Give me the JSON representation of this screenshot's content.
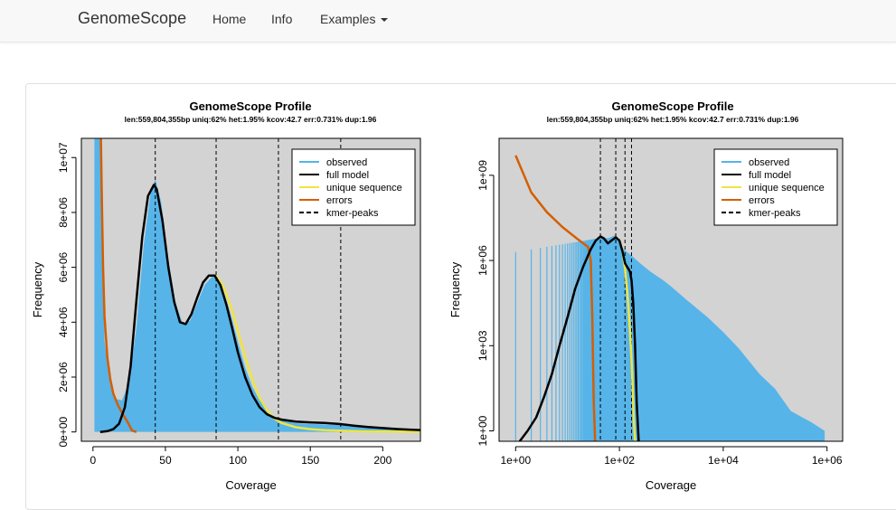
{
  "navbar": {
    "brand": "GenomeScope",
    "items": [
      "Home",
      "Info",
      "Examples"
    ]
  },
  "chart_data": [
    {
      "type": "histogram",
      "title": "GenomeScope Profile",
      "subtitle": "len:559,804,355bp uniq:62% het:1.95% kcov:42.7 err:0.731% dup:1.96",
      "xlabel": "Coverage",
      "ylabel": "Frequency",
      "xlim": [
        -8,
        226
      ],
      "ylim": [
        -340000,
        10700000
      ],
      "x_ticks": [
        0,
        50,
        100,
        150,
        200
      ],
      "x_tick_labels": [
        "0",
        "50",
        "100",
        "150",
        "200"
      ],
      "y_ticks": [
        0,
        2000000,
        4000000,
        6000000,
        8000000,
        10000000
      ],
      "y_tick_labels": [
        "0e+00",
        "2e+06",
        "4e+06",
        "6e+06",
        "8e+06",
        "1e+07"
      ],
      "kmer_peaks": [
        43,
        85,
        128,
        171
      ],
      "legend": [
        "observed",
        "full model",
        "unique sequence",
        "errors",
        "kmer-peaks"
      ],
      "legend_position": "top-right",
      "colors": {
        "observed": "#56b4e9",
        "full_model": "#000000",
        "unique": "#f0e442",
        "errors": "#d55e00",
        "background": "#d3d3d3"
      },
      "series": [
        {
          "name": "observed",
          "x": [
            1,
            3,
            5,
            8,
            12,
            16,
            20,
            25,
            30,
            35,
            40,
            43,
            47,
            52,
            57,
            62,
            67,
            72,
            77,
            82,
            85,
            90,
            95,
            100,
            105,
            110,
            115,
            120,
            128,
            140,
            150,
            160,
            171,
            180,
            190,
            200,
            210,
            220,
            226
          ],
          "y": [
            10700000,
            10700000,
            10700000,
            3300000,
            1700000,
            1200000,
            1150000,
            1800000,
            3800000,
            6800000,
            8800000,
            9200000,
            8400000,
            6300000,
            4700000,
            3950000,
            4050000,
            4700000,
            5350000,
            5650000,
            5650000,
            5150000,
            4300000,
            3300000,
            2350000,
            1650000,
            1150000,
            800000,
            450000,
            320000,
            290000,
            270000,
            250000,
            220000,
            190000,
            160000,
            130000,
            110000,
            100000
          ]
        },
        {
          "name": "full model",
          "x": [
            5,
            10,
            14,
            18,
            22,
            26,
            30,
            34,
            38,
            42,
            44,
            48,
            52,
            56,
            60,
            64,
            68,
            72,
            76,
            80,
            84,
            88,
            92,
            96,
            100,
            105,
            110,
            115,
            120,
            125,
            130,
            140,
            150,
            160,
            170,
            180,
            190,
            200,
            210,
            220,
            226
          ],
          "y": [
            0,
            30000,
            100000,
            300000,
            900000,
            2400000,
            4800000,
            7100000,
            8600000,
            9000000,
            8850000,
            7700000,
            6000000,
            4750000,
            4000000,
            3930000,
            4300000,
            4900000,
            5450000,
            5700000,
            5700000,
            5350000,
            4650000,
            3800000,
            2900000,
            2000000,
            1350000,
            900000,
            650000,
            520000,
            450000,
            380000,
            350000,
            330000,
            290000,
            230000,
            180000,
            140000,
            105000,
            80000,
            70000
          ]
        },
        {
          "name": "unique sequence",
          "x": [
            85,
            90,
            95,
            100,
            105,
            110,
            115,
            120,
            125,
            130,
            140,
            150,
            160,
            170,
            180,
            190,
            200,
            210,
            220,
            226
          ],
          "y": [
            5700000,
            5300000,
            4600000,
            3700000,
            2750000,
            1900000,
            1250000,
            800000,
            500000,
            330000,
            170000,
            100000,
            65000,
            45000,
            30000,
            20000,
            15000,
            10000,
            8000,
            6000
          ]
        },
        {
          "name": "errors",
          "x": [
            5.5,
            6,
            7,
            8,
            10,
            12,
            14,
            17,
            20,
            24,
            27,
            30
          ],
          "y": [
            10700000,
            9000000,
            6000000,
            4200000,
            2700000,
            1900000,
            1400000,
            1000000,
            700000,
            350000,
            50000,
            0
          ]
        }
      ]
    },
    {
      "type": "histogram",
      "title": "GenomeScope Profile",
      "subtitle": "len:559,804,355bp uniq:62% het:1.95% kcov:42.7 err:0.731% dup:1.96",
      "xlabel": "Coverage",
      "ylabel": "Frequency",
      "x_scale": "log",
      "y_scale": "log",
      "xlim": [
        0.48,
        2000000
      ],
      "ylim": [
        0.43,
        20000000000
      ],
      "x_ticks": [
        1,
        100,
        10000,
        1000000
      ],
      "x_tick_labels": [
        "1e+00",
        "1e+02",
        "1e+04",
        "1e+06"
      ],
      "y_ticks": [
        1,
        1000,
        1000000,
        1000000000
      ],
      "y_tick_labels": [
        "1e+00",
        "1e+03",
        "1e+06",
        "1e+09"
      ],
      "kmer_peaks": [
        43,
        85,
        128,
        171
      ],
      "legend": [
        "observed",
        "full model",
        "unique sequence",
        "errors",
        "kmer-peaks"
      ],
      "legend_position": "top-right",
      "colors": {
        "observed": "#56b4e9",
        "full_model": "#000000",
        "unique": "#f0e442",
        "errors": "#d55e00",
        "background": "#d3d3d3"
      },
      "series": [
        {
          "name": "observed",
          "x": [
            20,
            40,
            60,
            85,
            120,
            170,
            250,
            400,
            700,
            1000,
            2000,
            5000,
            10000,
            20000,
            50000,
            100000,
            200000,
            500000,
            900000
          ],
          "y": [
            2000000,
            7000000,
            6000000,
            8000000,
            2500000,
            1500000,
            800000,
            400000,
            200000,
            120000,
            40000,
            10000,
            3000,
            800,
            100,
            30,
            5,
            2,
            1
          ]
        },
        {
          "name": "full model",
          "x": [
            1.2,
            1.7,
            2.5,
            3.5,
            5,
            7,
            10,
            14,
            20,
            28,
            35,
            43,
            50,
            60,
            70,
            85,
            100,
            115,
            128,
            140,
            150,
            160,
            171,
            185,
            200,
            215,
            235
          ],
          "y": [
            0.4,
            1,
            3,
            15,
            100,
            1000,
            10000,
            100000,
            600000,
            2500000,
            5000000,
            7000000,
            6000000,
            4000000,
            5000000,
            6500000,
            5000000,
            2000000,
            800000,
            600000,
            500000,
            400000,
            200000,
            30000,
            1000,
            10,
            0.4
          ]
        },
        {
          "name": "unique sequence",
          "x": [
            85,
            100,
            115,
            128,
            140,
            150,
            160,
            171,
            180,
            190,
            200
          ],
          "y": [
            6500000,
            5000000,
            2000000,
            500000,
            100000,
            20000,
            3000,
            300,
            30,
            2,
            0.4
          ]
        },
        {
          "name": "errors",
          "x": [
            1,
            2,
            4,
            8,
            15,
            25,
            28,
            30,
            32,
            34
          ],
          "y": [
            5000000000,
            250000000,
            50000000,
            15000000,
            6000000,
            3000000,
            1000000,
            10000,
            10,
            0.4
          ]
        }
      ]
    }
  ]
}
